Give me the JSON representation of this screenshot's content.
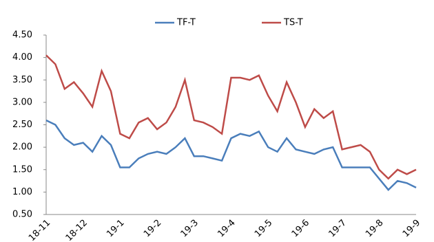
{
  "chart_data": {
    "type": "line",
    "categories": [
      "18-11",
      null,
      null,
      null,
      "18-12",
      null,
      null,
      null,
      "19-1",
      null,
      null,
      null,
      "19-2",
      null,
      null,
      null,
      "19-3",
      null,
      null,
      null,
      "19-4",
      null,
      null,
      null,
      "19-5",
      null,
      null,
      null,
      "19-6",
      null,
      null,
      null,
      "19-7",
      null,
      null,
      null,
      "19-8",
      null,
      null,
      null,
      "19-9"
    ],
    "series": [
      {
        "name": "TF-T",
        "color": "#4a7ebb",
        "values": [
          2.6,
          2.5,
          2.2,
          2.05,
          2.1,
          1.9,
          2.25,
          2.05,
          1.55,
          1.55,
          1.75,
          1.85,
          1.9,
          1.85,
          2.0,
          2.2,
          1.8,
          1.8,
          1.75,
          1.7,
          2.2,
          2.3,
          2.25,
          2.35,
          2.0,
          1.9,
          2.2,
          1.95,
          1.9,
          1.85,
          1.95,
          2.0,
          1.55,
          1.55,
          1.55,
          1.55,
          1.3,
          1.05,
          1.25,
          1.2,
          1.1
        ]
      },
      {
        "name": "TS-T",
        "color": "#be4b48",
        "values": [
          4.05,
          3.85,
          3.3,
          3.45,
          3.2,
          2.9,
          3.7,
          3.25,
          2.3,
          2.2,
          2.55,
          2.65,
          2.4,
          2.55,
          2.9,
          3.5,
          2.6,
          2.55,
          2.45,
          2.3,
          3.55,
          3.55,
          3.5,
          3.6,
          3.15,
          2.8,
          3.45,
          3.0,
          2.45,
          2.85,
          2.65,
          2.8,
          1.95,
          2.0,
          2.05,
          1.9,
          1.5,
          1.3,
          1.5,
          1.4,
          1.5
        ]
      }
    ],
    "ylim": [
      0.5,
      4.5
    ],
    "yticks": [
      {
        "value": 0.5,
        "label": "0.50"
      },
      {
        "value": 1,
        "label": "1.00"
      },
      {
        "value": 1.5,
        "label": "1.50"
      },
      {
        "value": 2,
        "label": "2.00"
      },
      {
        "value": 2.5,
        "label": "2.50"
      },
      {
        "value": 3,
        "label": "3.00"
      },
      {
        "value": 3.5,
        "label": "3.50"
      },
      {
        "value": 4,
        "label": "4.00"
      },
      {
        "value": 4.5,
        "label": "4.50"
      }
    ],
    "grid": false
  }
}
